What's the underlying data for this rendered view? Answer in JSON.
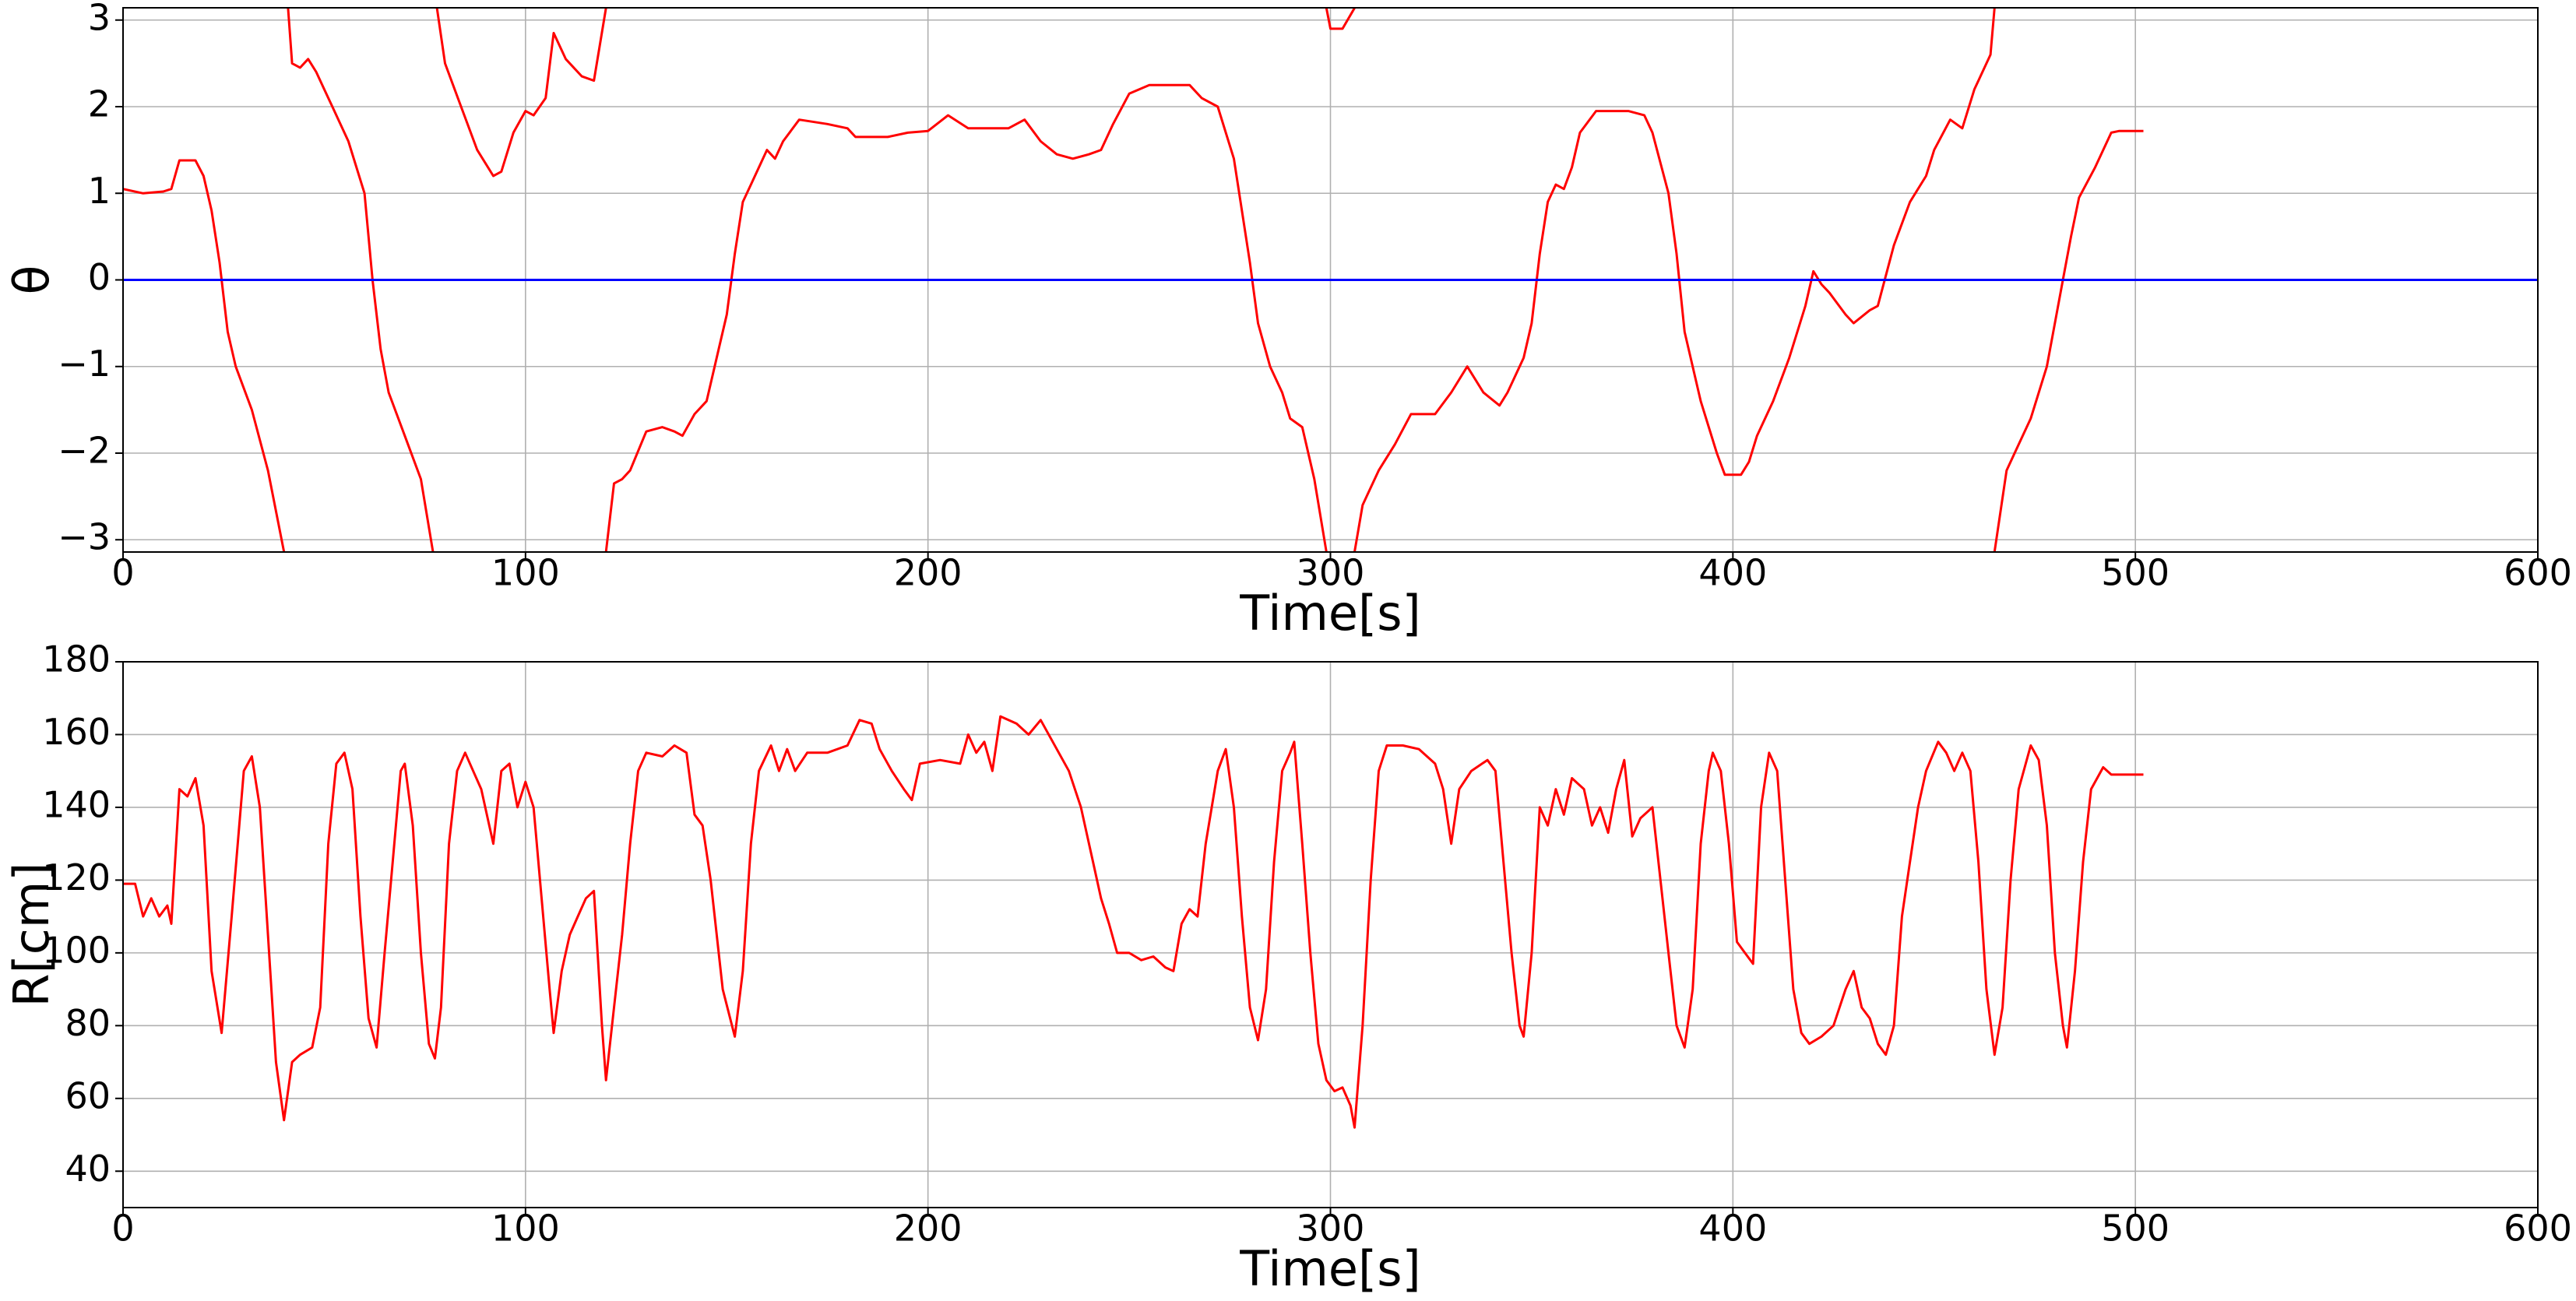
{
  "chart_data": [
    {
      "type": "line",
      "xlabel": "Time[s]",
      "ylabel": "θ",
      "xlim": [
        0,
        600
      ],
      "ylim": [
        -3.1416,
        3.1416
      ],
      "xticks": [
        0,
        100,
        200,
        300,
        400,
        500,
        600
      ],
      "yticks": [
        {
          "value": -3,
          "label": "−3"
        },
        {
          "value": -2,
          "label": "−2"
        },
        {
          "value": -1,
          "label": "−1"
        },
        0,
        1,
        2,
        3
      ],
      "grid": true,
      "series": [
        {
          "color": "#ff0000",
          "x": [
            0,
            5,
            10,
            12,
            14,
            18,
            20,
            22,
            24,
            26,
            28,
            32,
            36,
            40,
            40.5,
            41,
            42,
            44,
            46,
            48,
            50,
            52,
            56,
            60,
            62,
            64,
            66,
            70,
            74,
            77,
            77.5,
            78,
            80,
            84,
            88,
            92,
            94,
            97,
            100,
            102,
            105,
            107,
            110,
            114,
            117,
            120,
            120,
            120,
            122,
            124,
            126,
            130,
            134,
            137,
            139,
            142,
            145,
            148,
            150,
            152,
            154,
            156,
            160,
            162,
            164,
            168,
            175,
            180,
            182,
            190,
            195,
            200,
            205,
            210,
            220,
            224,
            228,
            232,
            236,
            240,
            243,
            246,
            250,
            255,
            260,
            265,
            268,
            272,
            276,
            278,
            280,
            282,
            285,
            288,
            290,
            293,
            296,
            299,
            299,
            299,
            300,
            303,
            306,
            306,
            306,
            308,
            312,
            316,
            320,
            326,
            330,
            334,
            338,
            342,
            344,
            348,
            350,
            352,
            354,
            356,
            358,
            360,
            362,
            366,
            374,
            378,
            380,
            384,
            386,
            388,
            392,
            396,
            398,
            402,
            404,
            406,
            410,
            414,
            418,
            420,
            422,
            424,
            428,
            430,
            434,
            436,
            440,
            444,
            448,
            450,
            454,
            457,
            460,
            464,
            465,
            465,
            465,
            468,
            470,
            474,
            478,
            480,
            482,
            484,
            486,
            490,
            494,
            496,
            502
          ],
          "values": [
            1.05,
            1.0,
            1.02,
            1.05,
            1.38,
            1.38,
            1.2,
            0.8,
            0.2,
            -0.6,
            -1.0,
            -1.5,
            -2.2,
            -3.14,
            null,
            3.14,
            2.5,
            2.45,
            2.55,
            2.4,
            2.2,
            2.0,
            1.6,
            1.0,
            0.0,
            -0.8,
            -1.3,
            -1.8,
            -2.3,
            -3.14,
            null,
            3.14,
            2.5,
            2.0,
            1.5,
            1.2,
            1.25,
            1.7,
            1.95,
            1.9,
            2.1,
            2.85,
            2.55,
            2.35,
            2.3,
            3.14,
            null,
            -3.14,
            -2.35,
            -2.3,
            -2.2,
            -1.75,
            -1.7,
            -1.75,
            -1.8,
            -1.55,
            -1.4,
            -0.8,
            -0.4,
            0.3,
            0.9,
            1.1,
            1.5,
            1.4,
            1.6,
            1.85,
            1.8,
            1.75,
            1.65,
            1.65,
            1.7,
            1.72,
            1.9,
            1.75,
            1.75,
            1.85,
            1.6,
            1.45,
            1.4,
            1.45,
            1.5,
            1.8,
            2.15,
            2.25,
            2.25,
            2.25,
            2.1,
            2.0,
            1.4,
            0.8,
            0.2,
            -0.5,
            -1.0,
            -1.3,
            -1.6,
            -1.7,
            -2.3,
            -3.14,
            null,
            3.14,
            2.9,
            2.9,
            3.14,
            null,
            -3.14,
            -2.6,
            -2.2,
            -1.9,
            -1.55,
            -1.55,
            -1.3,
            -1.0,
            -1.3,
            -1.45,
            -1.3,
            -0.9,
            -0.5,
            0.3,
            0.9,
            1.1,
            1.05,
            1.3,
            1.7,
            1.95,
            1.95,
            1.9,
            1.7,
            1.0,
            0.3,
            -0.6,
            -1.4,
            -2.0,
            -2.25,
            -2.25,
            -2.1,
            -1.8,
            -1.4,
            -0.9,
            -0.3,
            0.1,
            -0.05,
            -0.15,
            -0.4,
            -0.5,
            -0.35,
            -0.3,
            0.4,
            0.9,
            1.2,
            1.5,
            1.85,
            1.75,
            2.2,
            2.6,
            3.14,
            null,
            -3.14,
            -2.2,
            -2.0,
            -1.6,
            -1.0,
            -0.5,
            0.0,
            0.5,
            0.95,
            1.3,
            1.7,
            1.72,
            1.72
          ]
        },
        {
          "color": "#0000ff",
          "x": [
            0,
            600
          ],
          "values": [
            0,
            0
          ]
        }
      ]
    },
    {
      "type": "line",
      "xlabel": "Time[s]",
      "ylabel": "R[cm]",
      "xlim": [
        0,
        600
      ],
      "ylim": [
        30,
        180
      ],
      "xticks": [
        0,
        100,
        200,
        300,
        400,
        500,
        600
      ],
      "yticks": [
        40,
        60,
        80,
        100,
        120,
        140,
        160,
        180
      ],
      "grid": true,
      "series": [
        {
          "color": "#ff0000",
          "x": [
            0,
            3,
            5,
            7,
            9,
            11,
            12,
            14,
            16,
            18,
            20,
            22,
            24.5,
            27,
            30,
            32,
            34,
            36,
            38,
            40,
            42,
            44,
            47,
            49,
            51,
            53,
            55,
            57,
            59,
            61,
            63,
            65,
            67,
            69,
            70,
            72,
            74,
            76,
            77.5,
            79,
            81,
            83,
            85,
            87,
            89,
            91,
            92,
            94,
            96,
            98,
            100,
            102,
            104,
            106,
            107,
            109,
            111,
            113,
            115,
            117,
            119,
            120,
            122,
            124,
            126,
            128,
            130,
            134,
            137,
            140,
            142,
            144,
            146,
            149,
            152,
            154,
            156,
            158,
            161,
            163,
            165,
            167,
            170,
            175,
            180,
            183,
            186,
            188,
            191,
            194,
            196,
            198,
            203,
            208,
            210,
            212,
            214,
            216,
            218,
            222,
            225,
            228,
            231,
            235,
            238,
            241,
            243,
            245,
            247,
            250,
            253,
            256,
            259,
            261,
            263,
            265,
            267,
            269,
            272,
            274,
            276,
            278,
            280,
            282,
            284,
            286,
            288,
            290,
            291,
            293,
            295,
            297,
            299,
            301,
            303,
            305,
            306,
            308,
            310,
            312,
            314,
            318,
            322,
            326,
            328,
            330,
            332,
            335,
            339,
            341,
            343,
            345,
            347,
            348,
            350,
            352,
            354,
            356,
            358,
            360,
            363,
            365,
            367,
            369,
            371,
            373,
            375,
            377,
            380,
            382,
            384,
            386,
            388,
            390,
            392,
            394,
            395,
            397,
            399,
            401,
            403,
            405,
            407,
            409,
            411,
            413,
            415,
            417,
            419,
            422,
            425,
            428,
            430,
            432,
            434,
            436,
            438,
            440,
            442,
            444,
            446,
            448,
            451,
            453,
            455,
            457,
            459,
            461,
            463,
            465,
            467,
            469,
            471,
            474,
            476,
            478,
            480,
            482,
            483,
            485,
            487,
            489,
            492,
            494,
            502
          ],
          "values": [
            119,
            119,
            110,
            115,
            110,
            113,
            108,
            145,
            143,
            148,
            135,
            95,
            78,
            110,
            150,
            154,
            140,
            105,
            70,
            54,
            70,
            72,
            74,
            85,
            130,
            152,
            155,
            145,
            110,
            82,
            74,
            100,
            125,
            150,
            152,
            135,
            100,
            75,
            71,
            85,
            130,
            150,
            155,
            150,
            145,
            135,
            130,
            150,
            152,
            140,
            147,
            140,
            115,
            90,
            78,
            95,
            105,
            110,
            115,
            117,
            80,
            65,
            85,
            105,
            130,
            150,
            155,
            154,
            157,
            155,
            138,
            135,
            120,
            90,
            77,
            95,
            130,
            150,
            157,
            150,
            156,
            150,
            155,
            155,
            157,
            164,
            163,
            156,
            150,
            145,
            142,
            152,
            153,
            152,
            160,
            155,
            158,
            150,
            165,
            163,
            160,
            164,
            158,
            150,
            140,
            125,
            115,
            108,
            100,
            100,
            98,
            99,
            96,
            95,
            108,
            112,
            110,
            130,
            150,
            156,
            140,
            110,
            85,
            76,
            90,
            125,
            150,
            155,
            158,
            130,
            100,
            75,
            65,
            62,
            63,
            58,
            52,
            80,
            120,
            150,
            157,
            157,
            156,
            152,
            145,
            130,
            145,
            150,
            153,
            150,
            125,
            100,
            80,
            77,
            100,
            140,
            135,
            145,
            138,
            148,
            145,
            135,
            140,
            133,
            145,
            153,
            132,
            137,
            140,
            120,
            100,
            80,
            74,
            90,
            130,
            150,
            155,
            150,
            130,
            103,
            100,
            97,
            140,
            155,
            150,
            120,
            90,
            78,
            75,
            77,
            80,
            90,
            95,
            85,
            82,
            75,
            72,
            80,
            110,
            125,
            140,
            150,
            158,
            155,
            150,
            155,
            150,
            125,
            90,
            72,
            85,
            120,
            145,
            157,
            153,
            135,
            100,
            80,
            74,
            95,
            125,
            145,
            151,
            149,
            149
          ]
        }
      ]
    }
  ]
}
